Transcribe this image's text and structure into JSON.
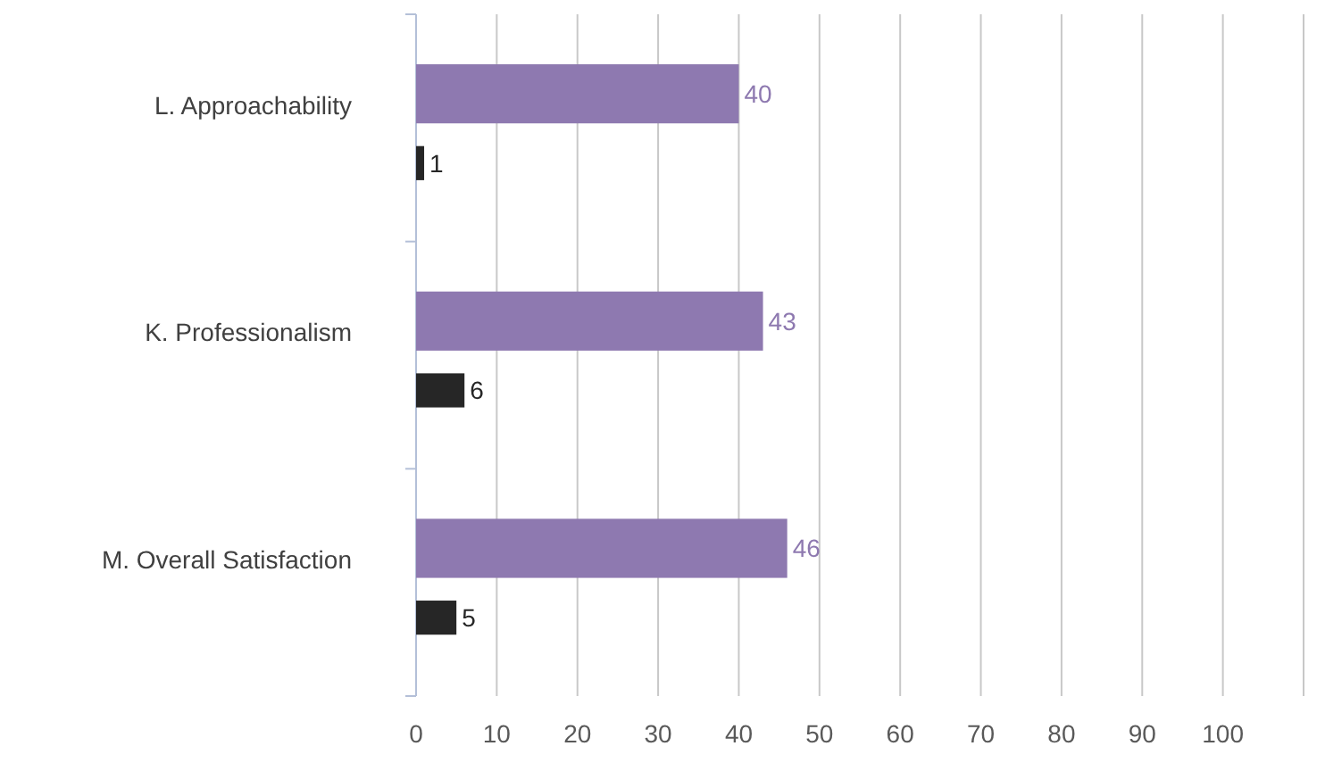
{
  "chart_data": {
    "type": "bar",
    "orientation": "horizontal",
    "categories": [
      "L. Approachability",
      "K. Professionalism",
      "M. Overall Satisfaction"
    ],
    "series": [
      {
        "color": "#8e79b0",
        "values": [
          40,
          43,
          46
        ]
      },
      {
        "color": "#262626",
        "values": [
          1,
          6,
          5
        ]
      }
    ],
    "xlim": [
      0,
      110
    ],
    "xticks": [
      0,
      10,
      20,
      30,
      40,
      50,
      60,
      70,
      80,
      90,
      100,
      {
        "value": 110,
        "label": null
      }
    ],
    "grid": "x",
    "data_labels": true
  }
}
